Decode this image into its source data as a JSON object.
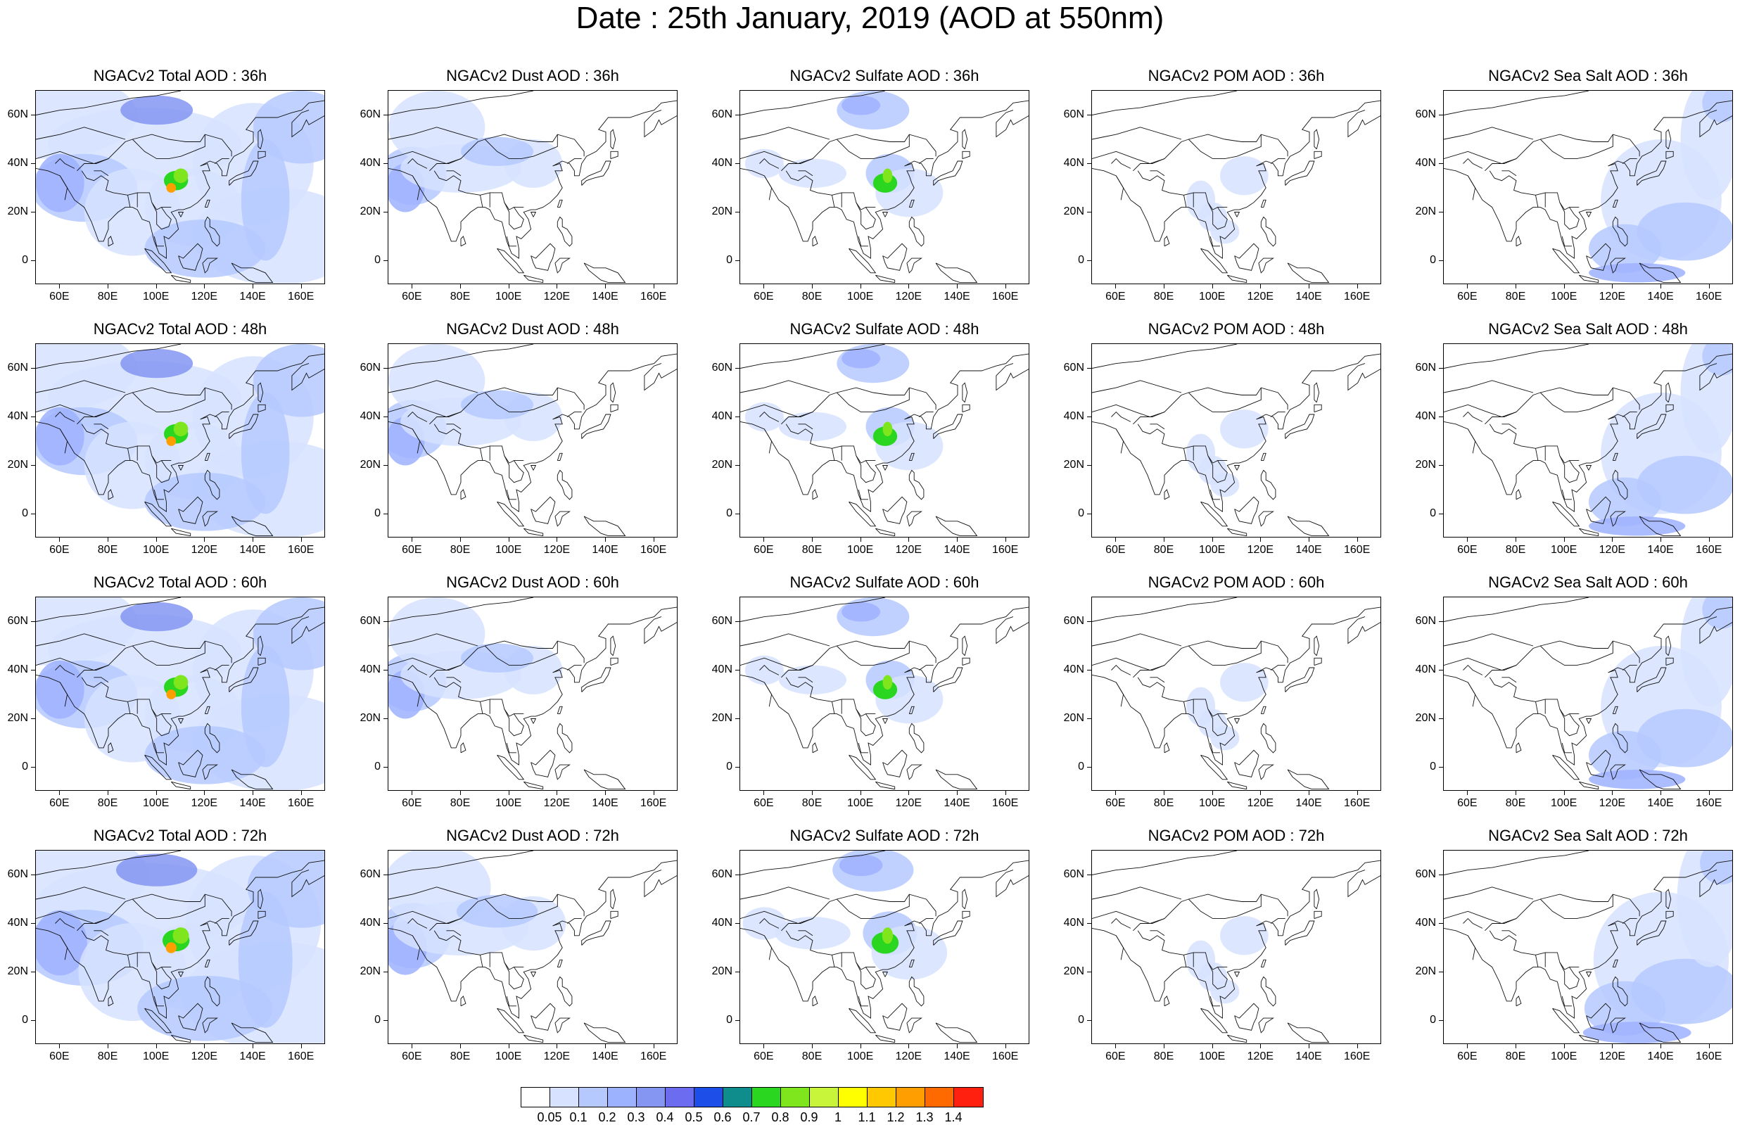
{
  "title": "Date : 25th January, 2019 (AOD at 550nm)",
  "panels": [
    [
      "NGACv2 Total AOD : 36h",
      "NGACv2 Dust AOD : 36h",
      "NGACv2 Sulfate AOD : 36h",
      "NGACv2 POM AOD : 36h",
      "NGACv2 Sea Salt AOD : 36h"
    ],
    [
      "NGACv2 Total AOD : 48h",
      "NGACv2 Dust AOD : 48h",
      "NGACv2 Sulfate AOD : 48h",
      "NGACv2 POM AOD : 48h",
      "NGACv2 Sea Salt AOD : 48h"
    ],
    [
      "NGACv2 Total AOD : 60h",
      "NGACv2 Dust AOD : 60h",
      "NGACv2 Sulfate AOD : 60h",
      "NGACv2 POM AOD : 60h",
      "NGACv2 Sea Salt AOD : 60h"
    ],
    [
      "NGACv2 Total AOD : 72h",
      "NGACv2 Dust AOD : 72h",
      "NGACv2 Sulfate AOD : 72h",
      "NGACv2 POM AOD : 72h",
      "NGACv2 Sea Salt  AOD : 72h"
    ]
  ],
  "x_ticks": [
    "60E",
    "80E",
    "100E",
    "120E",
    "140E",
    "160E"
  ],
  "y_ticks": [
    "60N",
    "40N",
    "20N",
    "0"
  ],
  "colorbar": {
    "labels": [
      "0.05",
      "0.1",
      "0.2",
      "0.3",
      "0.4",
      "0.5",
      "0.6",
      "0.7",
      "0.8",
      "0.9",
      "1",
      "1.1",
      "1.2",
      "1.3",
      "1.4"
    ],
    "colors": [
      "#ffffff",
      "#d6e2ff",
      "#b5c9ff",
      "#9db2ff",
      "#8495f2",
      "#6c6cf0",
      "#1d4fe8",
      "#0f8c8c",
      "#2ad61f",
      "#7fe61e",
      "#c8f53a",
      "#ffff00",
      "#ffc800",
      "#ff9e00",
      "#ff6a00",
      "#ff2010"
    ]
  },
  "map": {
    "lon_range": [
      50,
      170
    ],
    "lat_range": [
      -10,
      70
    ]
  }
}
